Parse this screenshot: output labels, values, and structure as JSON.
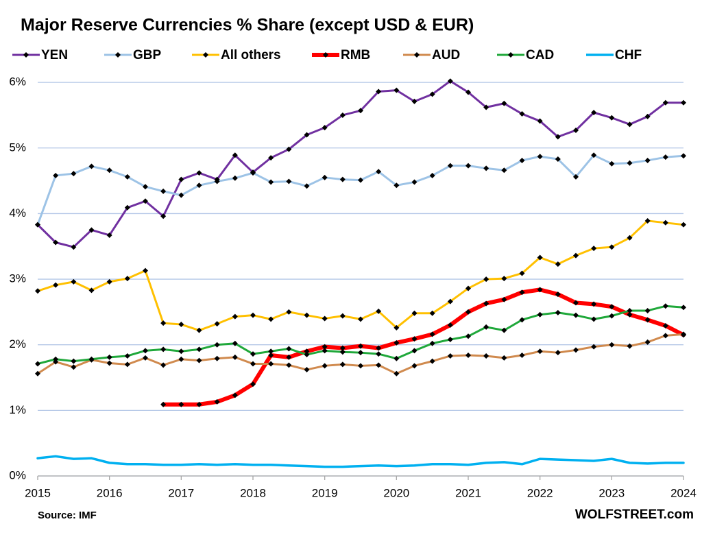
{
  "chart_data": {
    "type": "line",
    "title": "Major Reserve Currencies % Share (except USD & EUR)",
    "source": "Source: IMF",
    "credit": "WOLFSTREET.com",
    "x": [
      2015,
      2015.25,
      2015.5,
      2015.75,
      2016,
      2016.25,
      2016.5,
      2016.75,
      2017,
      2017.25,
      2017.5,
      2017.75,
      2018,
      2018.25,
      2018.5,
      2018.75,
      2019,
      2019.25,
      2019.5,
      2019.75,
      2020,
      2020.25,
      2020.5,
      2020.75,
      2021,
      2021.25,
      2021.5,
      2021.75,
      2022,
      2022.25,
      2022.5,
      2022.75,
      2023,
      2023.25,
      2023.5,
      2023.75,
      2024
    ],
    "xlim": [
      2015,
      2024
    ],
    "xticks": [
      2015,
      2016,
      2017,
      2018,
      2019,
      2020,
      2021,
      2022,
      2023,
      2024
    ],
    "ylim": [
      0,
      6.2
    ],
    "yticks": [
      {
        "value": 0,
        "label": "0%"
      },
      {
        "value": 1,
        "label": "1%"
      },
      {
        "value": 2,
        "label": "2%"
      },
      {
        "value": 3,
        "label": "3%"
      },
      {
        "value": 4,
        "label": "4%"
      },
      {
        "value": 5,
        "label": "5%"
      },
      {
        "value": 6,
        "label": "6%"
      }
    ],
    "grid": true,
    "legend": "top",
    "series": [
      {
        "name": "YEN",
        "color": "#7030a0",
        "markers": true,
        "line_width": 3,
        "values": [
          3.83,
          3.56,
          3.49,
          3.75,
          3.67,
          4.09,
          4.19,
          3.96,
          4.52,
          4.62,
          4.52,
          4.89,
          4.63,
          4.85,
          4.98,
          5.2,
          5.31,
          5.5,
          5.57,
          5.86,
          5.88,
          5.71,
          5.82,
          6.02,
          5.85,
          5.62,
          5.68,
          5.52,
          5.41,
          5.17,
          5.27,
          5.54,
          5.46,
          5.36,
          5.48,
          5.69,
          5.69
        ]
      },
      {
        "name": "GBP",
        "color": "#9dc3e6",
        "markers": true,
        "line_width": 3,
        "values": [
          3.83,
          4.58,
          4.61,
          4.72,
          4.66,
          4.56,
          4.41,
          4.34,
          4.28,
          4.43,
          4.49,
          4.54,
          4.62,
          4.48,
          4.49,
          4.42,
          4.55,
          4.52,
          4.51,
          4.64,
          4.43,
          4.48,
          4.58,
          4.73,
          4.73,
          4.69,
          4.66,
          4.81,
          4.87,
          4.83,
          4.56,
          4.89,
          4.76,
          4.77,
          4.81,
          4.86,
          4.88
        ]
      },
      {
        "name": "All others",
        "color": "#ffc000",
        "markers": true,
        "line_width": 3,
        "values": [
          2.82,
          2.91,
          2.96,
          2.83,
          2.96,
          3.01,
          3.13,
          2.33,
          2.31,
          2.22,
          2.32,
          2.43,
          2.45,
          2.39,
          2.5,
          2.45,
          2.4,
          2.44,
          2.39,
          2.51,
          2.26,
          2.48,
          2.48,
          2.66,
          2.86,
          3.0,
          3.01,
          3.09,
          3.33,
          3.23,
          3.36,
          3.47,
          3.49,
          3.63,
          3.89,
          3.86,
          3.83
        ]
      },
      {
        "name": "RMB",
        "color": "#ff0000",
        "markers": true,
        "line_width": 6,
        "values": [
          null,
          null,
          null,
          null,
          null,
          null,
          null,
          1.09,
          1.09,
          1.09,
          1.13,
          1.23,
          1.4,
          1.84,
          1.81,
          1.9,
          1.97,
          1.95,
          1.98,
          1.95,
          2.03,
          2.09,
          2.16,
          2.3,
          2.5,
          2.63,
          2.69,
          2.8,
          2.84,
          2.77,
          2.64,
          2.62,
          2.58,
          2.46,
          2.38,
          2.29,
          2.15
        ]
      },
      {
        "name": "AUD",
        "color": "#d08a4e",
        "markers": true,
        "line_width": 3,
        "values": [
          1.56,
          1.74,
          1.66,
          1.77,
          1.72,
          1.7,
          1.8,
          1.69,
          1.78,
          1.76,
          1.79,
          1.81,
          1.71,
          1.71,
          1.69,
          1.62,
          1.68,
          1.7,
          1.68,
          1.69,
          1.56,
          1.68,
          1.75,
          1.83,
          1.84,
          1.83,
          1.8,
          1.84,
          1.9,
          1.88,
          1.92,
          1.97,
          2.0,
          1.98,
          2.04,
          2.14,
          2.16
        ]
      },
      {
        "name": "CAD",
        "color": "#1fa83a",
        "markers": true,
        "line_width": 3,
        "values": [
          1.71,
          1.78,
          1.75,
          1.78,
          1.81,
          1.83,
          1.91,
          1.93,
          1.9,
          1.93,
          2.0,
          2.02,
          1.86,
          1.9,
          1.94,
          1.85,
          1.91,
          1.89,
          1.88,
          1.86,
          1.79,
          1.91,
          2.02,
          2.08,
          2.13,
          2.27,
          2.22,
          2.38,
          2.46,
          2.49,
          2.45,
          2.39,
          2.44,
          2.52,
          2.52,
          2.59,
          2.57
        ]
      },
      {
        "name": "CHF",
        "color": "#00b0f0",
        "markers": false,
        "line_width": 3.5,
        "values": [
          0.27,
          0.3,
          0.26,
          0.27,
          0.2,
          0.18,
          0.18,
          0.17,
          0.17,
          0.18,
          0.17,
          0.18,
          0.17,
          0.17,
          0.16,
          0.15,
          0.14,
          0.14,
          0.15,
          0.16,
          0.15,
          0.16,
          0.18,
          0.18,
          0.17,
          0.2,
          0.21,
          0.18,
          0.26,
          0.25,
          0.24,
          0.23,
          0.26,
          0.2,
          0.19,
          0.2,
          0.2
        ]
      }
    ]
  }
}
